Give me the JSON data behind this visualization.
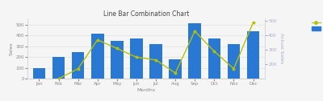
{
  "title": "Line Bar Combination Chart",
  "xlabel": "Months",
  "ylabel_left": "Sales",
  "ylabel_right": "Actual Sales",
  "months": [
    "Jan",
    "Feb",
    "Mar",
    "Apr",
    "May",
    "Jun",
    "Jul",
    "Aug",
    "Sep",
    "Oct",
    "Nov",
    "Dec"
  ],
  "proj_sales": [
    100,
    200,
    250,
    420,
    350,
    370,
    320,
    180,
    510,
    370,
    320,
    440
  ],
  "actual_sales": [
    80,
    100,
    170,
    370,
    310,
    250,
    230,
    140,
    430,
    290,
    170,
    490
  ],
  "bar_color": "#2979d4",
  "line_color": "#b5c200",
  "line_marker": "o",
  "background_color": "#f5f5f5",
  "grid_color": "#dddddd",
  "title_fontsize": 5.5,
  "axis_fontsize": 4.5,
  "tick_fontsize": 4,
  "legend_fontsize": 4,
  "ylim_left": [
    0,
    560
  ],
  "ylim_right": [
    100,
    520
  ],
  "yticks_left": [
    0,
    100,
    200,
    300,
    400,
    500
  ],
  "yticks_right": [
    200,
    300,
    400,
    500
  ]
}
